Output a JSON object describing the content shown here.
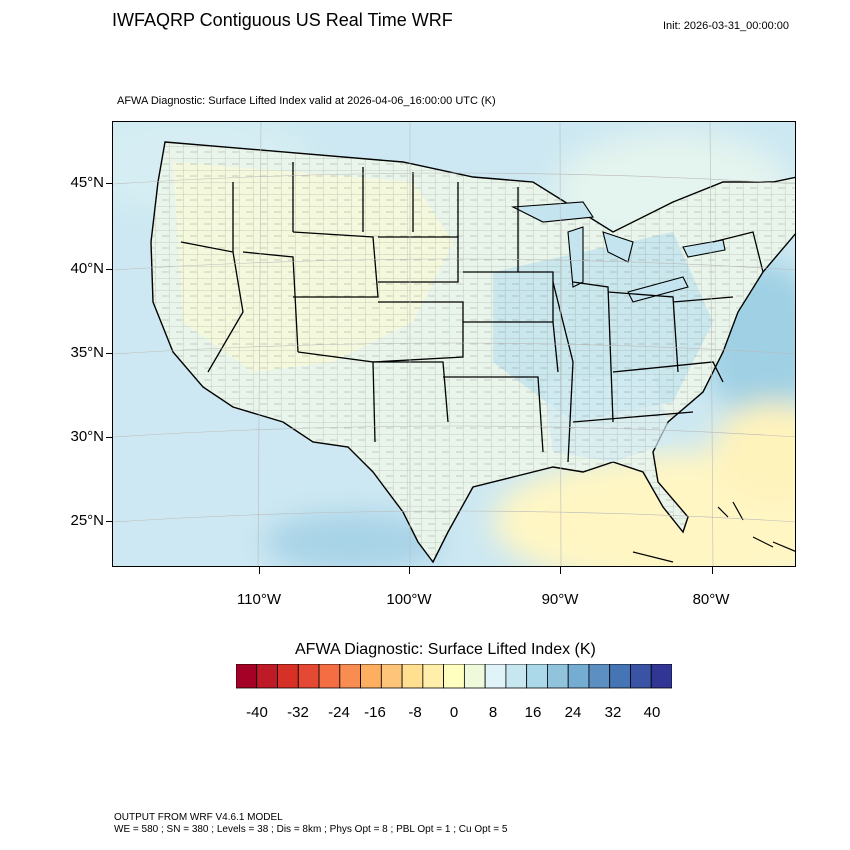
{
  "title": "IWFAQRP Contiguous US Real Time WRF",
  "init": "Init: 2026-03-31_00:00:00",
  "subtitle": "AFWA Diagnostic: Surface Lifted Index valid at 2026-04-06_16:00:00 UTC   (K)",
  "lat_labels": [
    "45°N",
    "40°N",
    "35°N",
    "30°N",
    "25°N"
  ],
  "lon_labels": [
    "110°W",
    "100°W",
    "90°W",
    "80°W"
  ],
  "colorbar": {
    "title": "AFWA Diagnostic: Surface Lifted Index  (K)",
    "labels": [
      "-40",
      "-32",
      "-24",
      "-16",
      "-8",
      "0",
      "8",
      "16",
      "24",
      "32",
      "40"
    ],
    "colors": [
      "#a50026",
      "#bf1a28",
      "#d73027",
      "#e34933",
      "#f46d43",
      "#f88c51",
      "#fdae61",
      "#fec57a",
      "#fee090",
      "#ffefaa",
      "#ffffbf",
      "#eff9db",
      "#e0f3f8",
      "#c7e6f0",
      "#abd9e9",
      "#91c3dd",
      "#74add1",
      "#5e8fc3",
      "#4575b4",
      "#3a53a4",
      "#313695"
    ]
  },
  "footer_line1": "OUTPUT FROM WRF V4.6.1 MODEL",
  "footer_line2": "WE = 580 ; SN = 380 ; Levels = 38 ; Dis = 8km ; Phys Opt = 8 ; PBL Opt = 1 ; Cu Opt = 5"
}
